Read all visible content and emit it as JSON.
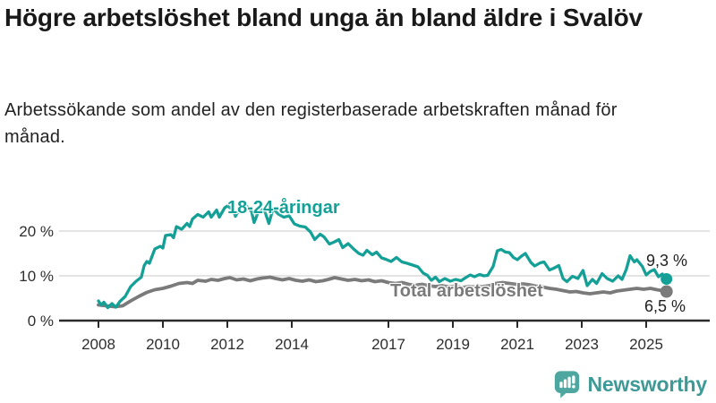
{
  "header": {
    "title": "Högre arbetslöshet bland unga än bland äldre i Svalöv",
    "subtitle": "Arbetssökande som andel av den registerbaserade arbetskraften månad för månad."
  },
  "footer": {
    "brand": "Newsworthy"
  },
  "colors": {
    "young_series": "#14a096",
    "total_series": "#7a7a7a",
    "grid": "#dcdcdc",
    "axis": "#2b2b2b",
    "logo": "#4da7a0",
    "wordmark": "#3e9a96"
  },
  "chart_data": {
    "type": "line",
    "title": "Högre arbetslöshet bland unga än bland äldre i Svalöv",
    "xlabel": "",
    "ylabel": "",
    "unit": "%",
    "grid": true,
    "legend_position": "inline-labels",
    "xlim": [
      2006.8,
      2027.0
    ],
    "ylim": [
      0,
      28.5
    ],
    "x_ticks": [
      {
        "value": 2008,
        "label": "2008"
      },
      {
        "value": 2010,
        "label": "2010"
      },
      {
        "value": 2012,
        "label": "2012"
      },
      {
        "value": 2014,
        "label": "2014"
      },
      {
        "value": 2017,
        "label": "2017"
      },
      {
        "value": 2019,
        "label": "2019"
      },
      {
        "value": 2021,
        "label": "2021"
      },
      {
        "value": 2023,
        "label": "2023"
      },
      {
        "value": 2025,
        "label": "2025"
      }
    ],
    "y_ticks": [
      {
        "value": 0,
        "label": "0 %"
      },
      {
        "value": 10,
        "label": "10 %"
      },
      {
        "value": 20,
        "label": "20 %"
      }
    ],
    "series": [
      {
        "name": "18-24-åringar",
        "color": "#14a096",
        "end_label": "9,3 %",
        "end_value": 9.3,
        "points": [
          [
            2008.0,
            4.4
          ],
          [
            2008.08,
            3.5
          ],
          [
            2008.17,
            4.1
          ],
          [
            2008.29,
            2.9
          ],
          [
            2008.42,
            3.8
          ],
          [
            2008.54,
            3.0
          ],
          [
            2008.67,
            4.3
          ],
          [
            2008.83,
            5.4
          ],
          [
            2009.0,
            7.6
          ],
          [
            2009.17,
            8.8
          ],
          [
            2009.33,
            9.7
          ],
          [
            2009.42,
            12.3
          ],
          [
            2009.5,
            13.2
          ],
          [
            2009.58,
            12.8
          ],
          [
            2009.75,
            16.0
          ],
          [
            2009.92,
            16.6
          ],
          [
            2010.0,
            16.2
          ],
          [
            2010.08,
            19.0
          ],
          [
            2010.25,
            19.2
          ],
          [
            2010.33,
            18.5
          ],
          [
            2010.42,
            21.0
          ],
          [
            2010.58,
            20.4
          ],
          [
            2010.75,
            21.7
          ],
          [
            2010.83,
            21.0
          ],
          [
            2010.92,
            22.7
          ],
          [
            2011.08,
            23.7
          ],
          [
            2011.25,
            23.1
          ],
          [
            2011.42,
            24.3
          ],
          [
            2011.5,
            23.1
          ],
          [
            2011.67,
            24.7
          ],
          [
            2011.75,
            23.1
          ],
          [
            2011.92,
            25.2
          ],
          [
            2012.0,
            25.6
          ],
          [
            2012.17,
            24.8
          ],
          [
            2012.25,
            23.3
          ],
          [
            2012.42,
            25.3
          ],
          [
            2012.58,
            25.7
          ],
          [
            2012.75,
            24.4
          ],
          [
            2012.83,
            21.9
          ],
          [
            2013.0,
            25.0
          ],
          [
            2013.17,
            24.3
          ],
          [
            2013.29,
            21.7
          ],
          [
            2013.42,
            25.0
          ],
          [
            2013.58,
            23.8
          ],
          [
            2013.75,
            23.1
          ],
          [
            2013.92,
            23.4
          ],
          [
            2014.08,
            21.6
          ],
          [
            2014.25,
            21.1
          ],
          [
            2014.42,
            20.9
          ],
          [
            2014.58,
            19.8
          ],
          [
            2014.71,
            18.1
          ],
          [
            2014.88,
            19.3
          ],
          [
            2015.0,
            18.7
          ],
          [
            2015.17,
            17.1
          ],
          [
            2015.33,
            17.6
          ],
          [
            2015.46,
            18.1
          ],
          [
            2015.58,
            16.3
          ],
          [
            2015.75,
            17.2
          ],
          [
            2015.92,
            16.0
          ],
          [
            2016.08,
            15.0
          ],
          [
            2016.21,
            14.6
          ],
          [
            2016.33,
            15.7
          ],
          [
            2016.5,
            14.7
          ],
          [
            2016.63,
            15.3
          ],
          [
            2016.79,
            14.0
          ],
          [
            2016.92,
            13.7
          ],
          [
            2017.08,
            13.2
          ],
          [
            2017.25,
            14.1
          ],
          [
            2017.42,
            13.1
          ],
          [
            2017.58,
            12.8
          ],
          [
            2017.75,
            12.4
          ],
          [
            2017.92,
            12.0
          ],
          [
            2018.08,
            10.6
          ],
          [
            2018.21,
            10.1
          ],
          [
            2018.33,
            9.0
          ],
          [
            2018.46,
            9.7
          ],
          [
            2018.58,
            8.7
          ],
          [
            2018.75,
            9.4
          ],
          [
            2018.92,
            8.8
          ],
          [
            2019.08,
            9.2
          ],
          [
            2019.25,
            8.9
          ],
          [
            2019.42,
            9.7
          ],
          [
            2019.54,
            10.2
          ],
          [
            2019.67,
            9.8
          ],
          [
            2019.83,
            10.3
          ],
          [
            2019.96,
            10.0
          ],
          [
            2020.08,
            10.1
          ],
          [
            2020.25,
            12.1
          ],
          [
            2020.38,
            15.6
          ],
          [
            2020.5,
            15.9
          ],
          [
            2020.63,
            15.3
          ],
          [
            2020.75,
            15.2
          ],
          [
            2020.88,
            14.1
          ],
          [
            2021.0,
            13.6
          ],
          [
            2021.13,
            14.4
          ],
          [
            2021.25,
            15.0
          ],
          [
            2021.42,
            13.0
          ],
          [
            2021.54,
            12.2
          ],
          [
            2021.71,
            12.9
          ],
          [
            2021.83,
            13.1
          ],
          [
            2022.0,
            11.3
          ],
          [
            2022.13,
            11.7
          ],
          [
            2022.29,
            12.3
          ],
          [
            2022.42,
            9.4
          ],
          [
            2022.54,
            8.7
          ],
          [
            2022.71,
            9.9
          ],
          [
            2022.88,
            9.4
          ],
          [
            2023.04,
            11.2
          ],
          [
            2023.17,
            7.8
          ],
          [
            2023.33,
            9.2
          ],
          [
            2023.46,
            8.3
          ],
          [
            2023.63,
            10.5
          ],
          [
            2023.79,
            9.4
          ],
          [
            2023.96,
            8.8
          ],
          [
            2024.13,
            10.0
          ],
          [
            2024.25,
            9.2
          ],
          [
            2024.38,
            11.4
          ],
          [
            2024.5,
            14.5
          ],
          [
            2024.63,
            13.1
          ],
          [
            2024.71,
            13.6
          ],
          [
            2024.88,
            12.1
          ],
          [
            2025.0,
            10.2
          ],
          [
            2025.13,
            11.0
          ],
          [
            2025.25,
            11.4
          ],
          [
            2025.38,
            9.8
          ],
          [
            2025.5,
            10.4
          ],
          [
            2025.63,
            9.3
          ]
        ]
      },
      {
        "name": "Total arbetslöshet",
        "color": "#7a7a7a",
        "end_label": "6,5 %",
        "end_value": 6.5,
        "points": [
          [
            2008.0,
            3.5
          ],
          [
            2008.25,
            3.3
          ],
          [
            2008.5,
            3.1
          ],
          [
            2008.75,
            3.3
          ],
          [
            2009.0,
            4.4
          ],
          [
            2009.25,
            5.4
          ],
          [
            2009.5,
            6.3
          ],
          [
            2009.75,
            6.9
          ],
          [
            2010.0,
            7.2
          ],
          [
            2010.25,
            7.7
          ],
          [
            2010.5,
            8.3
          ],
          [
            2010.75,
            8.5
          ],
          [
            2010.92,
            8.3
          ],
          [
            2011.08,
            9.0
          ],
          [
            2011.33,
            8.8
          ],
          [
            2011.5,
            9.2
          ],
          [
            2011.71,
            9.0
          ],
          [
            2011.92,
            9.4
          ],
          [
            2012.08,
            9.6
          ],
          [
            2012.29,
            9.1
          ],
          [
            2012.5,
            9.3
          ],
          [
            2012.71,
            8.9
          ],
          [
            2012.92,
            9.3
          ],
          [
            2013.08,
            9.5
          ],
          [
            2013.33,
            9.7
          ],
          [
            2013.5,
            9.4
          ],
          [
            2013.71,
            9.1
          ],
          [
            2013.92,
            9.4
          ],
          [
            2014.13,
            9.0
          ],
          [
            2014.33,
            8.8
          ],
          [
            2014.54,
            9.1
          ],
          [
            2014.75,
            8.7
          ],
          [
            2014.96,
            8.9
          ],
          [
            2015.13,
            9.2
          ],
          [
            2015.33,
            9.6
          ],
          [
            2015.54,
            9.3
          ],
          [
            2015.75,
            9.0
          ],
          [
            2015.96,
            9.2
          ],
          [
            2016.17,
            8.9
          ],
          [
            2016.38,
            9.1
          ],
          [
            2016.58,
            8.7
          ],
          [
            2016.79,
            8.9
          ],
          [
            2017.0,
            8.5
          ],
          [
            2017.21,
            8.3
          ],
          [
            2017.42,
            8.5
          ],
          [
            2017.63,
            8.1
          ],
          [
            2017.83,
            7.9
          ],
          [
            2018.04,
            8.1
          ],
          [
            2018.25,
            7.8
          ],
          [
            2018.46,
            7.6
          ],
          [
            2018.67,
            7.8
          ],
          [
            2018.88,
            7.5
          ],
          [
            2019.08,
            7.7
          ],
          [
            2019.29,
            7.4
          ],
          [
            2019.5,
            7.6
          ],
          [
            2019.71,
            7.5
          ],
          [
            2019.92,
            7.6
          ],
          [
            2020.13,
            7.8
          ],
          [
            2020.33,
            8.3
          ],
          [
            2020.54,
            8.5
          ],
          [
            2020.75,
            8.3
          ],
          [
            2020.96,
            8.1
          ],
          [
            2021.17,
            8.2
          ],
          [
            2021.38,
            8.0
          ],
          [
            2021.58,
            7.7
          ],
          [
            2021.79,
            7.5
          ],
          [
            2022.0,
            7.2
          ],
          [
            2022.21,
            7.0
          ],
          [
            2022.42,
            6.7
          ],
          [
            2022.63,
            6.4
          ],
          [
            2022.83,
            6.5
          ],
          [
            2023.04,
            6.2
          ],
          [
            2023.25,
            6.0
          ],
          [
            2023.46,
            6.2
          ],
          [
            2023.67,
            6.4
          ],
          [
            2023.88,
            6.2
          ],
          [
            2024.08,
            6.6
          ],
          [
            2024.29,
            6.8
          ],
          [
            2024.5,
            7.0
          ],
          [
            2024.71,
            7.2
          ],
          [
            2024.92,
            7.0
          ],
          [
            2025.13,
            7.2
          ],
          [
            2025.33,
            6.9
          ],
          [
            2025.5,
            6.7
          ],
          [
            2025.63,
            6.5
          ]
        ]
      }
    ]
  }
}
